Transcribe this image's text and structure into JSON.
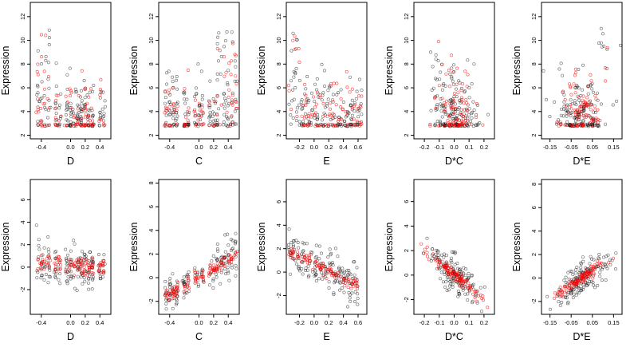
{
  "colors": {
    "black_points": "#000000",
    "red_points": "#ff0000",
    "frame": "#000000"
  },
  "chart_data": [
    {
      "type": "scatter",
      "xlabel": "D",
      "ylabel": "Expression",
      "xlim": [
        -0.55,
        0.55
      ],
      "ylim": [
        1.7,
        13.2
      ],
      "xticks": [
        -0.4,
        0.0,
        0.2,
        0.4
      ],
      "xtick_labels": [
        "-0.4",
        "0.0",
        "0.2",
        "0.4"
      ],
      "yticks": [
        2,
        4,
        6,
        8,
        10,
        12
      ],
      "ytick_labels": [
        "2",
        "4",
        "6",
        "8",
        "10",
        "12"
      ],
      "series_colors": [
        "black",
        "red"
      ]
    },
    {
      "type": "scatter",
      "xlabel": "C",
      "ylabel": "Expression",
      "xlim": [
        -0.55,
        0.55
      ],
      "ylim": [
        1.7,
        13.2
      ],
      "xticks": [
        -0.4,
        0.0,
        0.2,
        0.4
      ],
      "xtick_labels": [
        "-0.4",
        "0.0",
        "0.2",
        "0.4"
      ],
      "yticks": [
        2,
        4,
        6,
        8,
        10,
        12
      ],
      "ytick_labels": [
        "2",
        "4",
        "6",
        "8",
        "10",
        "12"
      ],
      "series_colors": [
        "black",
        "red"
      ]
    },
    {
      "type": "scatter",
      "xlabel": "E",
      "ylabel": "Expression",
      "xlim": [
        -0.38,
        0.72
      ],
      "ylim": [
        1.7,
        13.2
      ],
      "xticks": [
        -0.2,
        0.0,
        0.2,
        0.4,
        0.6
      ],
      "xtick_labels": [
        "-0.2",
        "0.0",
        "0.2",
        "0.4",
        "0.6"
      ],
      "yticks": [
        2,
        4,
        6,
        8,
        10,
        12
      ],
      "ytick_labels": [
        "2",
        "4",
        "6",
        "8",
        "10",
        "12"
      ],
      "series_colors": [
        "black",
        "red"
      ]
    },
    {
      "type": "scatter",
      "xlabel": "D*C",
      "ylabel": "Expression",
      "xlim": [
        -0.27,
        0.27
      ],
      "ylim": [
        1.7,
        13.2
      ],
      "xticks": [
        -0.2,
        -0.1,
        0.0,
        0.1,
        0.2
      ],
      "xtick_labels": [
        "-0.2",
        "-0.1",
        "0.0",
        "0.1",
        "0.2"
      ],
      "yticks": [
        2,
        4,
        6,
        8,
        10,
        12
      ],
      "ytick_labels": [
        "2",
        "4",
        "6",
        "8",
        "10",
        "12"
      ],
      "series_colors": [
        "black",
        "red"
      ]
    },
    {
      "type": "scatter",
      "xlabel": "D*E",
      "ylabel": "Expression",
      "xlim": [
        -0.19,
        0.19
      ],
      "ylim": [
        1.7,
        13.2
      ],
      "xticks": [
        -0.15,
        -0.05,
        0.05,
        0.15
      ],
      "xtick_labels": [
        "-0.15",
        "-0.05",
        "0.05",
        "0.15"
      ],
      "yticks": [
        2,
        4,
        6,
        8,
        10,
        12
      ],
      "ytick_labels": [
        "2",
        "4",
        "6",
        "8",
        "10",
        "12"
      ],
      "series_colors": [
        "black",
        "red"
      ]
    },
    {
      "type": "scatter",
      "xlabel": "D",
      "ylabel": "Expression",
      "xlim": [
        -0.55,
        0.55
      ],
      "ylim": [
        -4.2,
        7.8
      ],
      "xticks": [
        -0.4,
        0.0,
        0.2,
        0.4
      ],
      "xtick_labels": [
        "-0.4",
        "0.0",
        "0.2",
        "0.4"
      ],
      "yticks": [
        -2,
        0,
        2,
        4,
        6
      ],
      "ytick_labels": [
        "-2",
        "0",
        "2",
        "4",
        "6"
      ],
      "series_colors": [
        "black",
        "red"
      ]
    },
    {
      "type": "scatter",
      "xlabel": "C",
      "ylabel": "Expression",
      "xlim": [
        -0.55,
        0.55
      ],
      "ylim": [
        -3.1,
        8.3
      ],
      "xticks": [
        -0.4,
        0.0,
        0.2,
        0.4
      ],
      "xtick_labels": [
        "-0.4",
        "0.0",
        "0.2",
        "0.4"
      ],
      "yticks": [
        -2,
        0,
        2,
        4,
        6,
        8
      ],
      "ytick_labels": [
        "-2",
        "0",
        "2",
        "4",
        "6",
        "8"
      ],
      "series_colors": [
        "black",
        "red"
      ]
    },
    {
      "type": "scatter",
      "xlabel": "E",
      "ylabel": "Expression",
      "xlim": [
        -0.38,
        0.72
      ],
      "ylim": [
        -3.6,
        7.9
      ],
      "xticks": [
        -0.2,
        0.0,
        0.2,
        0.4,
        0.6
      ],
      "xtick_labels": [
        "-0.2",
        "0.0",
        "0.2",
        "0.4",
        "0.6"
      ],
      "yticks": [
        -2,
        0,
        2,
        4,
        6
      ],
      "ytick_labels": [
        "-2",
        "0",
        "2",
        "4",
        "6"
      ],
      "series_colors": [
        "black",
        "red"
      ]
    },
    {
      "type": "scatter",
      "xlabel": "D*C",
      "ylabel": "Expression",
      "xlim": [
        -0.27,
        0.27
      ],
      "ylim": [
        -3.2,
        7.8
      ],
      "xticks": [
        -0.2,
        -0.1,
        0.0,
        0.1,
        0.2
      ],
      "xtick_labels": [
        "-0.2",
        "-0.1",
        "0.0",
        "0.1",
        "0.2"
      ],
      "yticks": [
        -2,
        0,
        2,
        4,
        6
      ],
      "ytick_labels": [
        "-2",
        "0",
        "2",
        "4",
        "6"
      ],
      "series_colors": [
        "black",
        "red"
      ]
    },
    {
      "type": "scatter",
      "xlabel": "D*E",
      "ylabel": "Expression",
      "xlim": [
        -0.19,
        0.19
      ],
      "ylim": [
        -3.1,
        8.4
      ],
      "xticks": [
        -0.15,
        -0.05,
        0.05,
        0.15
      ],
      "xtick_labels": [
        "-0.15",
        "-0.05",
        "0.05",
        "0.15"
      ],
      "yticks": [
        -2,
        0,
        2,
        4,
        6,
        8
      ],
      "ytick_labels": [
        "-2",
        "0",
        "2",
        "4",
        "6",
        "8"
      ],
      "series_colors": [
        "black",
        "red"
      ]
    }
  ]
}
